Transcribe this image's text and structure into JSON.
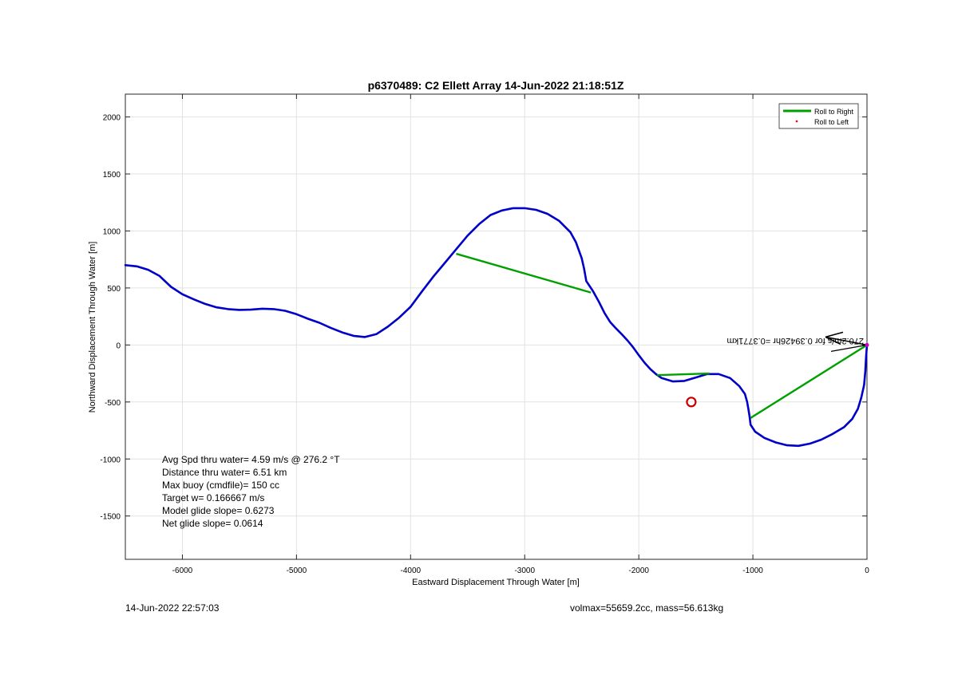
{
  "chart_data": {
    "type": "line",
    "title": "p6370489: C2 Ellett Array 14-Jun-2022 21:18:51Z",
    "xlabel": "Eastward Displacement Through Water [m]",
    "ylabel": "Northward Displacement Through Water [m]",
    "xlim": [
      -6500,
      0
    ],
    "ylim": [
      -1880,
      2200
    ],
    "xticks": [
      -6000,
      -5000,
      -4000,
      -3000,
      -2000,
      -1000,
      0
    ],
    "yticks": [
      -1500,
      -1000,
      -500,
      0,
      500,
      1000,
      1500,
      2000
    ],
    "grid": true,
    "legend": {
      "placement": "top-right",
      "entries": [
        {
          "label": "Roll to Right",
          "color": "#00a000",
          "style": "line"
        },
        {
          "label": "Roll to Left",
          "color": "#ff0000",
          "style": "dot"
        }
      ]
    },
    "track": {
      "color": "#0000c8",
      "points": [
        [
          -6500,
          700
        ],
        [
          -6400,
          690
        ],
        [
          -6300,
          660
        ],
        [
          -6200,
          605
        ],
        [
          -6100,
          510
        ],
        [
          -6000,
          445
        ],
        [
          -5900,
          400
        ],
        [
          -5800,
          360
        ],
        [
          -5700,
          330
        ],
        [
          -5600,
          315
        ],
        [
          -5500,
          308
        ],
        [
          -5400,
          310
        ],
        [
          -5300,
          318
        ],
        [
          -5200,
          315
        ],
        [
          -5100,
          300
        ],
        [
          -5000,
          270
        ],
        [
          -4900,
          230
        ],
        [
          -4800,
          195
        ],
        [
          -4700,
          150
        ],
        [
          -4600,
          110
        ],
        [
          -4500,
          80
        ],
        [
          -4400,
          70
        ],
        [
          -4300,
          95
        ],
        [
          -4200,
          160
        ],
        [
          -4100,
          240
        ],
        [
          -4000,
          335
        ],
        [
          -3900,
          470
        ],
        [
          -3800,
          600
        ],
        [
          -3700,
          720
        ],
        [
          -3600,
          840
        ],
        [
          -3500,
          960
        ],
        [
          -3400,
          1060
        ],
        [
          -3300,
          1140
        ],
        [
          -3200,
          1180
        ],
        [
          -3100,
          1200
        ],
        [
          -3000,
          1200
        ],
        [
          -2900,
          1185
        ],
        [
          -2800,
          1150
        ],
        [
          -2700,
          1090
        ],
        [
          -2600,
          990
        ],
        [
          -2550,
          900
        ],
        [
          -2500,
          760
        ],
        [
          -2480,
          670
        ],
        [
          -2460,
          560
        ],
        [
          -2440,
          530
        ],
        [
          -2400,
          470
        ],
        [
          -2350,
          380
        ],
        [
          -2300,
          280
        ],
        [
          -2250,
          200
        ],
        [
          -2200,
          145
        ],
        [
          -2150,
          95
        ],
        [
          -2100,
          40
        ],
        [
          -2050,
          -20
        ],
        [
          -2000,
          -90
        ],
        [
          -1950,
          -155
        ],
        [
          -1900,
          -210
        ],
        [
          -1850,
          -255
        ],
        [
          -1800,
          -290
        ],
        [
          -1700,
          -320
        ],
        [
          -1600,
          -315
        ],
        [
          -1500,
          -285
        ],
        [
          -1400,
          -255
        ],
        [
          -1300,
          -255
        ],
        [
          -1200,
          -290
        ],
        [
          -1120,
          -360
        ],
        [
          -1070,
          -430
        ],
        [
          -1050,
          -500
        ],
        [
          -1040,
          -560
        ],
        [
          -1030,
          -620
        ],
        [
          -1020,
          -700
        ],
        [
          -980,
          -760
        ],
        [
          -900,
          -815
        ],
        [
          -800,
          -855
        ],
        [
          -700,
          -880
        ],
        [
          -600,
          -885
        ],
        [
          -500,
          -865
        ],
        [
          -400,
          -830
        ],
        [
          -300,
          -780
        ],
        [
          -200,
          -720
        ],
        [
          -130,
          -650
        ],
        [
          -80,
          -560
        ],
        [
          -50,
          -460
        ],
        [
          -25,
          -350
        ],
        [
          -15,
          -230
        ],
        [
          -8,
          -100
        ],
        [
          0,
          0
        ]
      ]
    },
    "roll_segments": [
      {
        "from": [
          -3600,
          800
        ],
        "to": [
          -2420,
          460
        ]
      },
      {
        "from": [
          -1840,
          -265
        ],
        "to": [
          -1380,
          -250
        ]
      },
      {
        "from": [
          -1020,
          -640
        ],
        "to": [
          0,
          0
        ]
      }
    ],
    "target_marker": {
      "x": -1540,
      "y": -500,
      "color": "#c80000"
    },
    "arrow_label": "270.2m/s for 0.39426hr =0.3771km",
    "annotations": [
      "Avg Spd thru water=  4.59 m/s @ 276.2 °T",
      "Distance thru water=  6.51 km",
      "Max buoy (cmdfile)= 150 cc",
      "Target w= 0.166667 m/s",
      "Model glide slope= 0.6273",
      "Net glide slope= 0.0614"
    ]
  },
  "footer": {
    "timestamp": "14-Jun-2022 22:57:03",
    "vol_mass": "volmax=55659.2cc, mass=56.613kg"
  }
}
